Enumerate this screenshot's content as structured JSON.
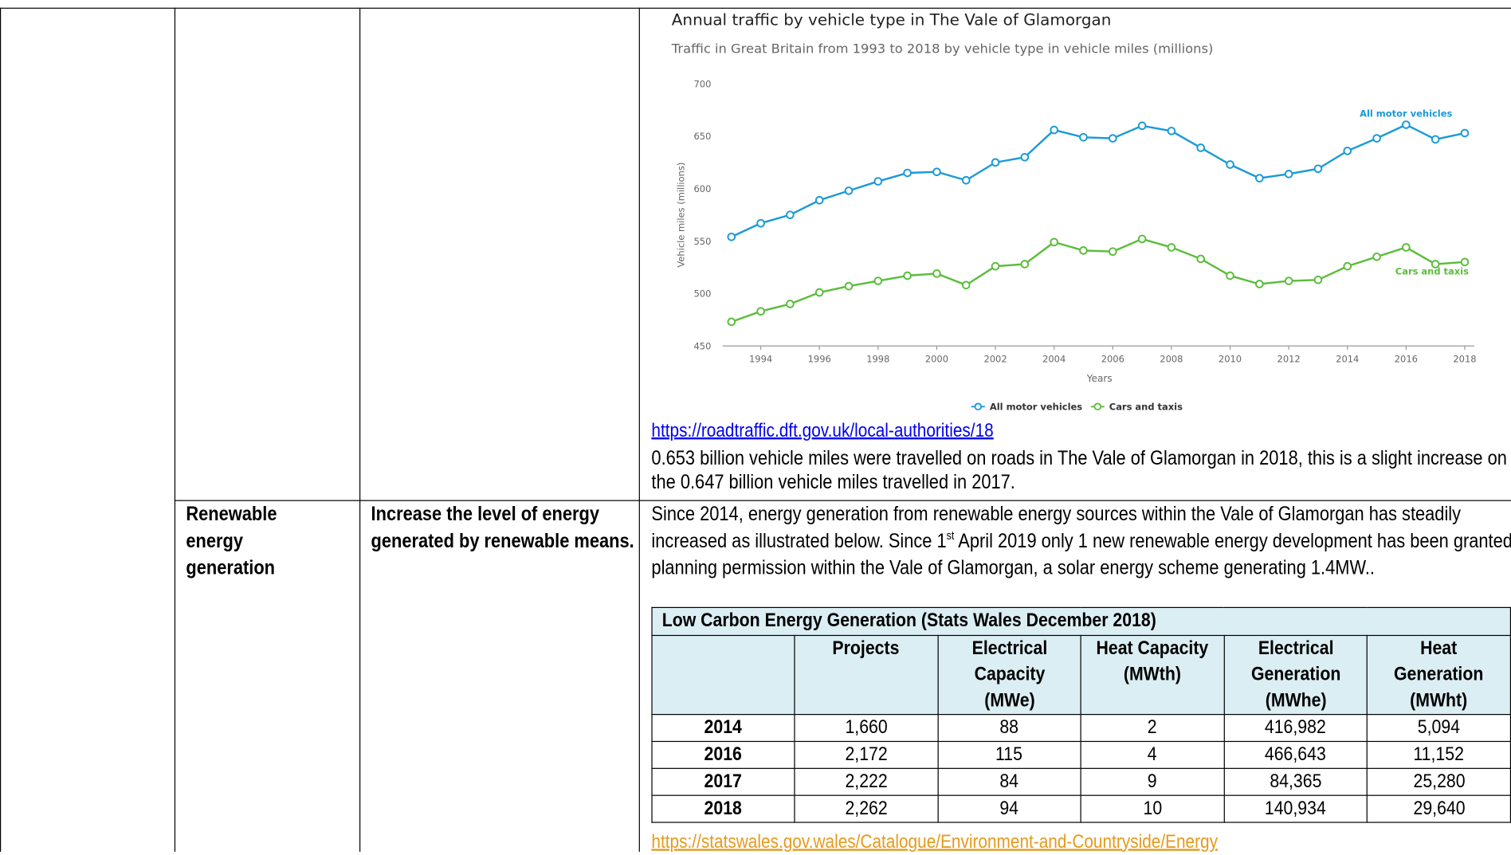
{
  "row1": {
    "link": "https://roadtraffic.dft.gov.uk/local-authorities/18",
    "text": "0.653 billion vehicle miles were travelled on roads in The Vale of Glamorgan in 2018, this is a slight increase on the 0.647 billion vehicle miles travelled in 2017."
  },
  "chart_data": {
    "type": "line",
    "title": "Annual traffic by vehicle type in The Vale of Glamorgan",
    "subtitle": "Traffic in Great Britain from 1993 to 2018 by vehicle type in vehicle miles (millions)",
    "y_label": "Vehicle miles (millions)",
    "x_label": "Years",
    "x": [
      1993,
      1994,
      1995,
      1996,
      1997,
      1998,
      1999,
      2000,
      2001,
      2002,
      2003,
      2004,
      2005,
      2006,
      2007,
      2008,
      2009,
      2010,
      2011,
      2012,
      2013,
      2014,
      2015,
      2016,
      2017,
      2018
    ],
    "series": [
      {
        "name": "All motor vehicles",
        "color": "#1a9ad6",
        "values": [
          554,
          567,
          575,
          589,
          598,
          607,
          615,
          616,
          608,
          625,
          630,
          656,
          649,
          648,
          660,
          655,
          639,
          623,
          610,
          614,
          619,
          636,
          648,
          661,
          647,
          653
        ]
      },
      {
        "name": "Cars and taxis",
        "color": "#5bbd3b",
        "values": [
          473,
          483,
          490,
          501,
          507,
          512,
          517,
          519,
          508,
          526,
          528,
          549,
          541,
          540,
          552,
          544,
          533,
          517,
          509,
          512,
          513,
          526,
          535,
          544,
          528,
          530
        ]
      }
    ],
    "xlim": [
      1993,
      2018
    ],
    "xticks": [
      1994,
      1996,
      1998,
      2000,
      2002,
      2004,
      2006,
      2008,
      2010,
      2012,
      2014,
      2016,
      2018
    ],
    "ylim": [
      450,
      700
    ],
    "yticks": [
      450,
      500,
      550,
      600,
      650,
      700
    ],
    "grid": false,
    "legend": "bottom"
  },
  "row2": {
    "topic": "Renewable energy generation",
    "objective": "Increase the level of energy generated by renewable means.",
    "paragraph": [
      "Since 2014, energy generation from renewable energy sources within the Vale of Glamorgan has steadily increased as illustrated below. Since 1",
      "st",
      " April 2019 only 1 new renewable energy development has been granted planning permission within the Vale of Glamorgan, a solar energy scheme generating 1.4MW.."
    ],
    "table": {
      "title": "Low Carbon Energy Generation (Stats Wales December 2018)",
      "columns": [
        "Projects",
        "Electrical Capacity (MWe)",
        "Heat Capacity (MWth)",
        "Electrical Generation (MWhe)",
        "Heat Generation (MWht)"
      ],
      "rows": [
        [
          "2014",
          "1,660",
          "88",
          "2",
          "416,982",
          "5,094"
        ],
        [
          "2016",
          "2,172",
          "115",
          "4",
          "466,643",
          "11,152"
        ],
        [
          "2017",
          "2,222",
          "84",
          "9",
          "84,365",
          "25,280"
        ],
        [
          "2018",
          "2,262",
          "94",
          "10",
          "140,934",
          "29,640"
        ]
      ]
    },
    "link": "https://statswales.gov.wales/Catalogue/Environment-and-Countryside/Energy"
  }
}
